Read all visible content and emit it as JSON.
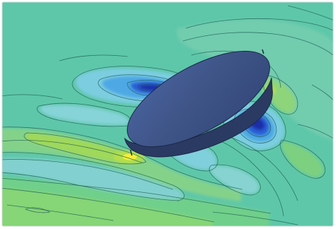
{
  "figure": {
    "colors": {
      "background": "#ffffff",
      "field_base": "#5ec7a9",
      "field_high": "#7fd07a",
      "peak_green": "#b8e04a",
      "peak_yellow": "#f3ee3a",
      "low_light": "#7fcfe0",
      "low_mid": "#4ea8e4",
      "low_deep": "#2b5fd6",
      "low_core": "#1e2fa8",
      "contour_line": "#1a5a4e",
      "body_top": "#3e5486",
      "body_side": "#2a3a63",
      "body_edge": "#1c2747"
    }
  }
}
